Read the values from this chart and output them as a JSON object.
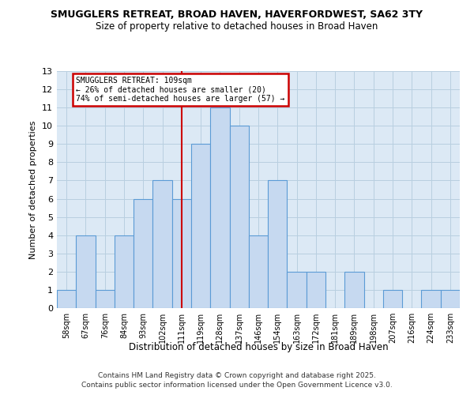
{
  "title1": "SMUGGLERS RETREAT, BROAD HAVEN, HAVERFORDWEST, SA62 3TY",
  "title2": "Size of property relative to detached houses in Broad Haven",
  "xlabel": "Distribution of detached houses by size in Broad Haven",
  "ylabel": "Number of detached properties",
  "categories": [
    "58sqm",
    "67sqm",
    "76sqm",
    "84sqm",
    "93sqm",
    "102sqm",
    "111sqm",
    "119sqm",
    "128sqm",
    "137sqm",
    "146sqm",
    "154sqm",
    "163sqm",
    "172sqm",
    "181sqm",
    "189sqm",
    "198sqm",
    "207sqm",
    "216sqm",
    "224sqm",
    "233sqm"
  ],
  "bar_values": [
    1,
    4,
    1,
    4,
    6,
    7,
    6,
    9,
    11,
    10,
    4,
    7,
    2,
    2,
    0,
    2,
    0,
    1,
    0,
    1,
    1
  ],
  "bar_color": "#c6d9f0",
  "bar_edge_color": "#5b9bd5",
  "red_line_index": 6,
  "annotation_title": "SMUGGLERS RETREAT: 109sqm",
  "annotation_line1": "← 26% of detached houses are smaller (20)",
  "annotation_line2": "74% of semi-detached houses are larger (57) →",
  "annotation_box_color": "#ffffff",
  "annotation_box_edge": "#cc0000",
  "red_line_color": "#cc0000",
  "ylim": [
    0,
    13
  ],
  "yticks": [
    0,
    1,
    2,
    3,
    4,
    5,
    6,
    7,
    8,
    9,
    10,
    11,
    12,
    13
  ],
  "plot_bg_color": "#dce9f5",
  "background_color": "#ffffff",
  "grid_color": "#b8cfe0",
  "footer1": "Contains HM Land Registry data © Crown copyright and database right 2025.",
  "footer2": "Contains public sector information licensed under the Open Government Licence v3.0."
}
